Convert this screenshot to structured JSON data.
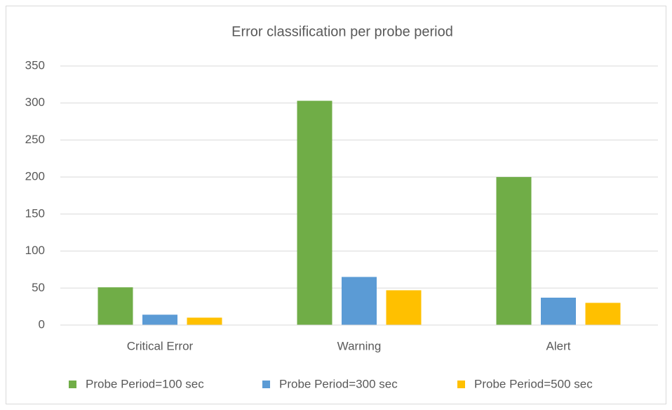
{
  "chart_data": {
    "type": "bar",
    "title": "Error classification per probe period",
    "categories": [
      "Critical Error",
      "Warning",
      "Alert"
    ],
    "series": [
      {
        "name": "Probe Period=100 sec",
        "color": "#70ad47",
        "values": [
          51,
          303,
          200
        ]
      },
      {
        "name": "Probe Period=300 sec",
        "color": "#5b9bd5",
        "values": [
          14,
          65,
          37
        ]
      },
      {
        "name": "Probe Period=500 sec",
        "color": "#ffc000",
        "values": [
          10,
          47,
          30
        ]
      }
    ],
    "ylim": [
      0,
      350
    ],
    "yticks": [
      0,
      50,
      100,
      150,
      200,
      250,
      300,
      350
    ],
    "grid": true,
    "legend": "bottom"
  }
}
